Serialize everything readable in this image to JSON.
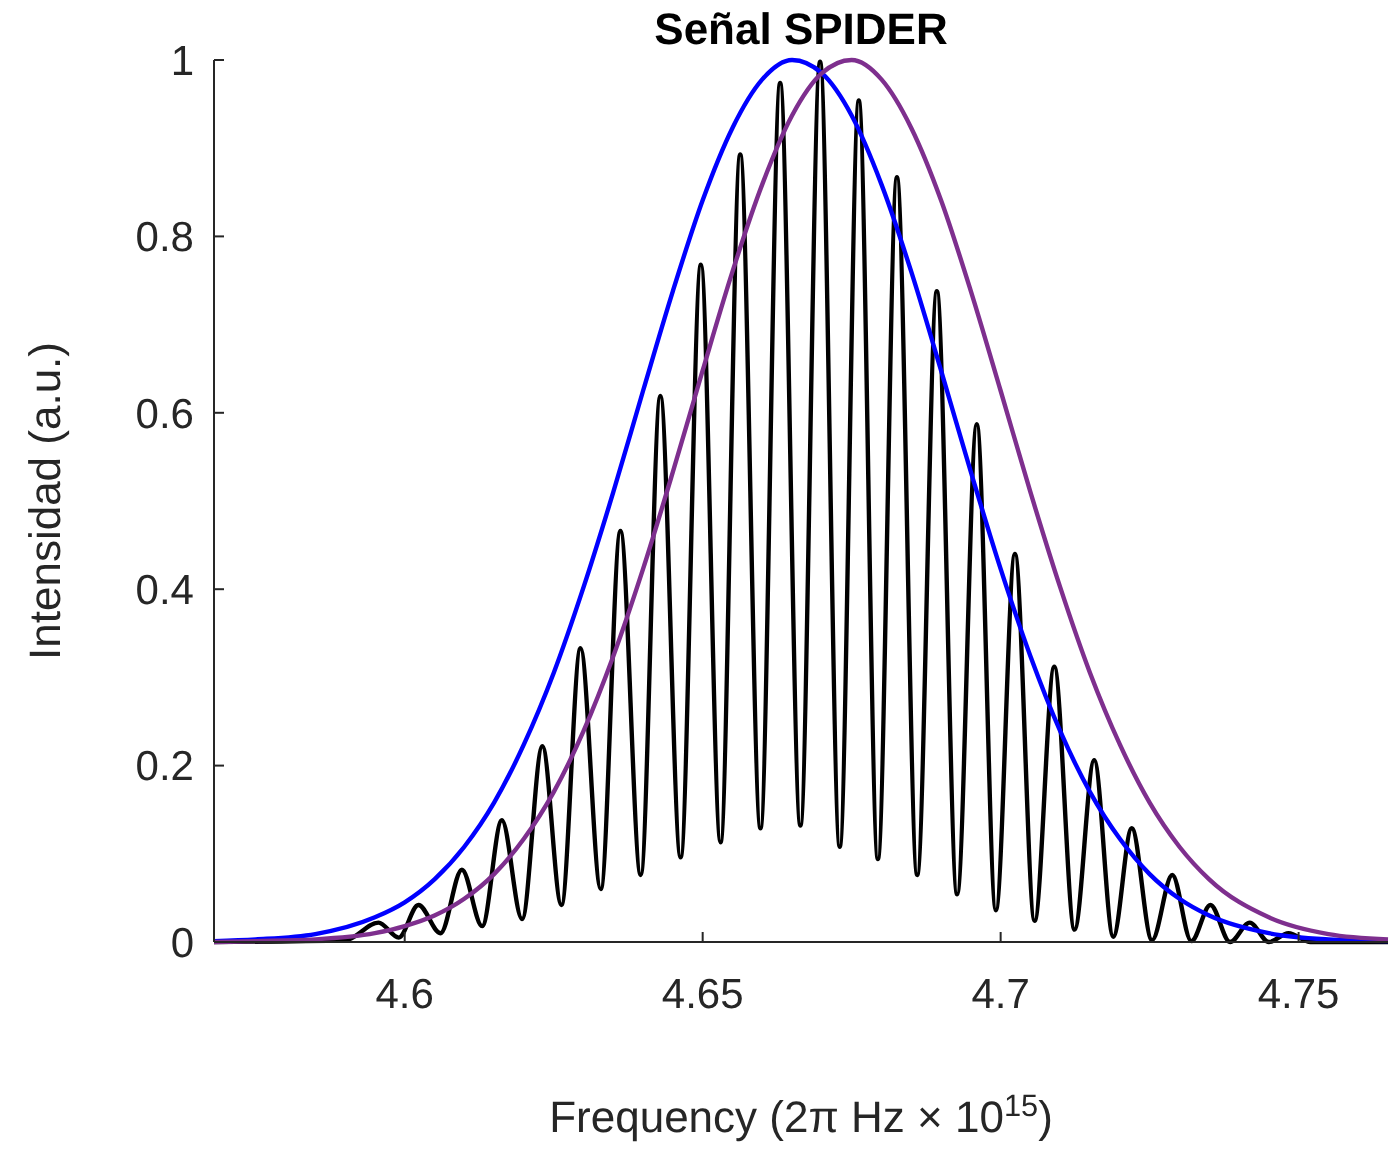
{
  "chart_data": {
    "type": "line",
    "title": "Señal SPIDER",
    "xlabel": "Frequency (2π Hz × 10$^{15}$)",
    "ylabel": "Intensidad (a.u.)",
    "xlim": [
      4.568,
      4.765
    ],
    "ylim": [
      0,
      1
    ],
    "xticks": [
      4.6,
      4.65,
      4.7,
      4.75
    ],
    "yticks": [
      0,
      0.2,
      0.4,
      0.6,
      0.8,
      1
    ],
    "series": [
      {
        "color": "#000000",
        "x": [
          4.568,
          4.59,
          4.5956,
          4.599,
          4.6023,
          4.606,
          4.6096,
          4.613,
          4.6163,
          4.6197,
          4.6231,
          4.6263,
          4.6295,
          4.6329,
          4.6362,
          4.6396,
          4.6429,
          4.6463,
          4.6497,
          4.653,
          4.6563,
          4.6597,
          4.663,
          4.6664,
          4.6697,
          4.673,
          4.6762,
          4.6794,
          4.6826,
          4.686,
          4.6893,
          4.6927,
          4.696,
          4.6992,
          4.7024,
          4.7057,
          4.709,
          4.7124,
          4.7157,
          4.7189,
          4.722,
          4.7254,
          4.7288,
          4.732,
          4.7352,
          4.7385,
          4.7418,
          4.745,
          4.7483,
          4.752,
          4.765
        ],
        "values": [
          0,
          0.002,
          0.022,
          0.005,
          0.042,
          0.01,
          0.082,
          0.018,
          0.138,
          0.026,
          0.222,
          0.042,
          0.333,
          0.06,
          0.466,
          0.076,
          0.619,
          0.096,
          0.768,
          0.113,
          0.893,
          0.129,
          0.974,
          0.132,
          0.998,
          0.108,
          0.954,
          0.094,
          0.867,
          0.076,
          0.738,
          0.054,
          0.587,
          0.036,
          0.44,
          0.024,
          0.312,
          0.014,
          0.206,
          0.006,
          0.129,
          0.002,
          0.076,
          0.001,
          0.042,
          0,
          0.022,
          0,
          0.01,
          0,
          0
        ]
      },
      {
        "color": "#0000ff",
        "x": [
          4.568,
          4.575,
          4.585,
          4.595,
          4.6,
          4.605,
          4.61,
          4.615,
          4.62,
          4.625,
          4.63,
          4.635,
          4.64,
          4.645,
          4.65,
          4.655,
          4.66,
          4.665,
          4.67,
          4.675,
          4.68,
          4.685,
          4.69,
          4.695,
          4.7,
          4.705,
          4.71,
          4.715,
          4.72,
          4.725,
          4.73,
          4.735,
          4.745,
          4.755,
          4.765
        ],
        "values": [
          0.001,
          0.003,
          0.009,
          0.028,
          0.045,
          0.071,
          0.108,
          0.158,
          0.224,
          0.305,
          0.402,
          0.51,
          0.625,
          0.738,
          0.841,
          0.923,
          0.978,
          1,
          0.985,
          0.937,
          0.859,
          0.76,
          0.648,
          0.533,
          0.423,
          0.324,
          0.239,
          0.17,
          0.117,
          0.077,
          0.049,
          0.03,
          0.01,
          0.003,
          0.001
        ]
      },
      {
        "color": "#7e2f8e",
        "x": [
          4.568,
          4.575,
          4.585,
          4.595,
          4.6,
          4.605,
          4.61,
          4.615,
          4.62,
          4.625,
          4.63,
          4.635,
          4.64,
          4.645,
          4.65,
          4.655,
          4.66,
          4.665,
          4.67,
          4.675,
          4.68,
          4.685,
          4.69,
          4.695,
          4.7,
          4.705,
          4.71,
          4.715,
          4.72,
          4.725,
          4.73,
          4.735,
          4.745,
          4.755,
          4.765
        ],
        "values": [
          0,
          0.001,
          0.003,
          0.01,
          0.018,
          0.03,
          0.049,
          0.077,
          0.117,
          0.17,
          0.239,
          0.324,
          0.423,
          0.533,
          0.648,
          0.76,
          0.859,
          0.937,
          0.985,
          1,
          0.978,
          0.923,
          0.841,
          0.738,
          0.625,
          0.51,
          0.402,
          0.305,
          0.224,
          0.158,
          0.108,
          0.071,
          0.028,
          0.009,
          0.003
        ]
      }
    ]
  }
}
